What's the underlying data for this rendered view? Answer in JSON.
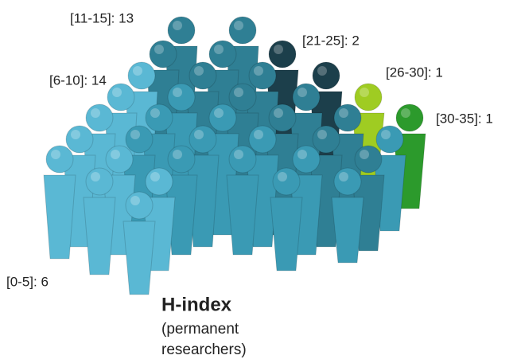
{
  "labels": [
    "[11-15]: 13",
    "[21-25]: 2",
    "[6-10]: 14",
    "[26-30]: 1",
    "[30-35]: 1",
    "[0-5]: 6"
  ],
  "title": "H-index",
  "subtitle": [
    "(permanent",
    "researchers)"
  ]
}
